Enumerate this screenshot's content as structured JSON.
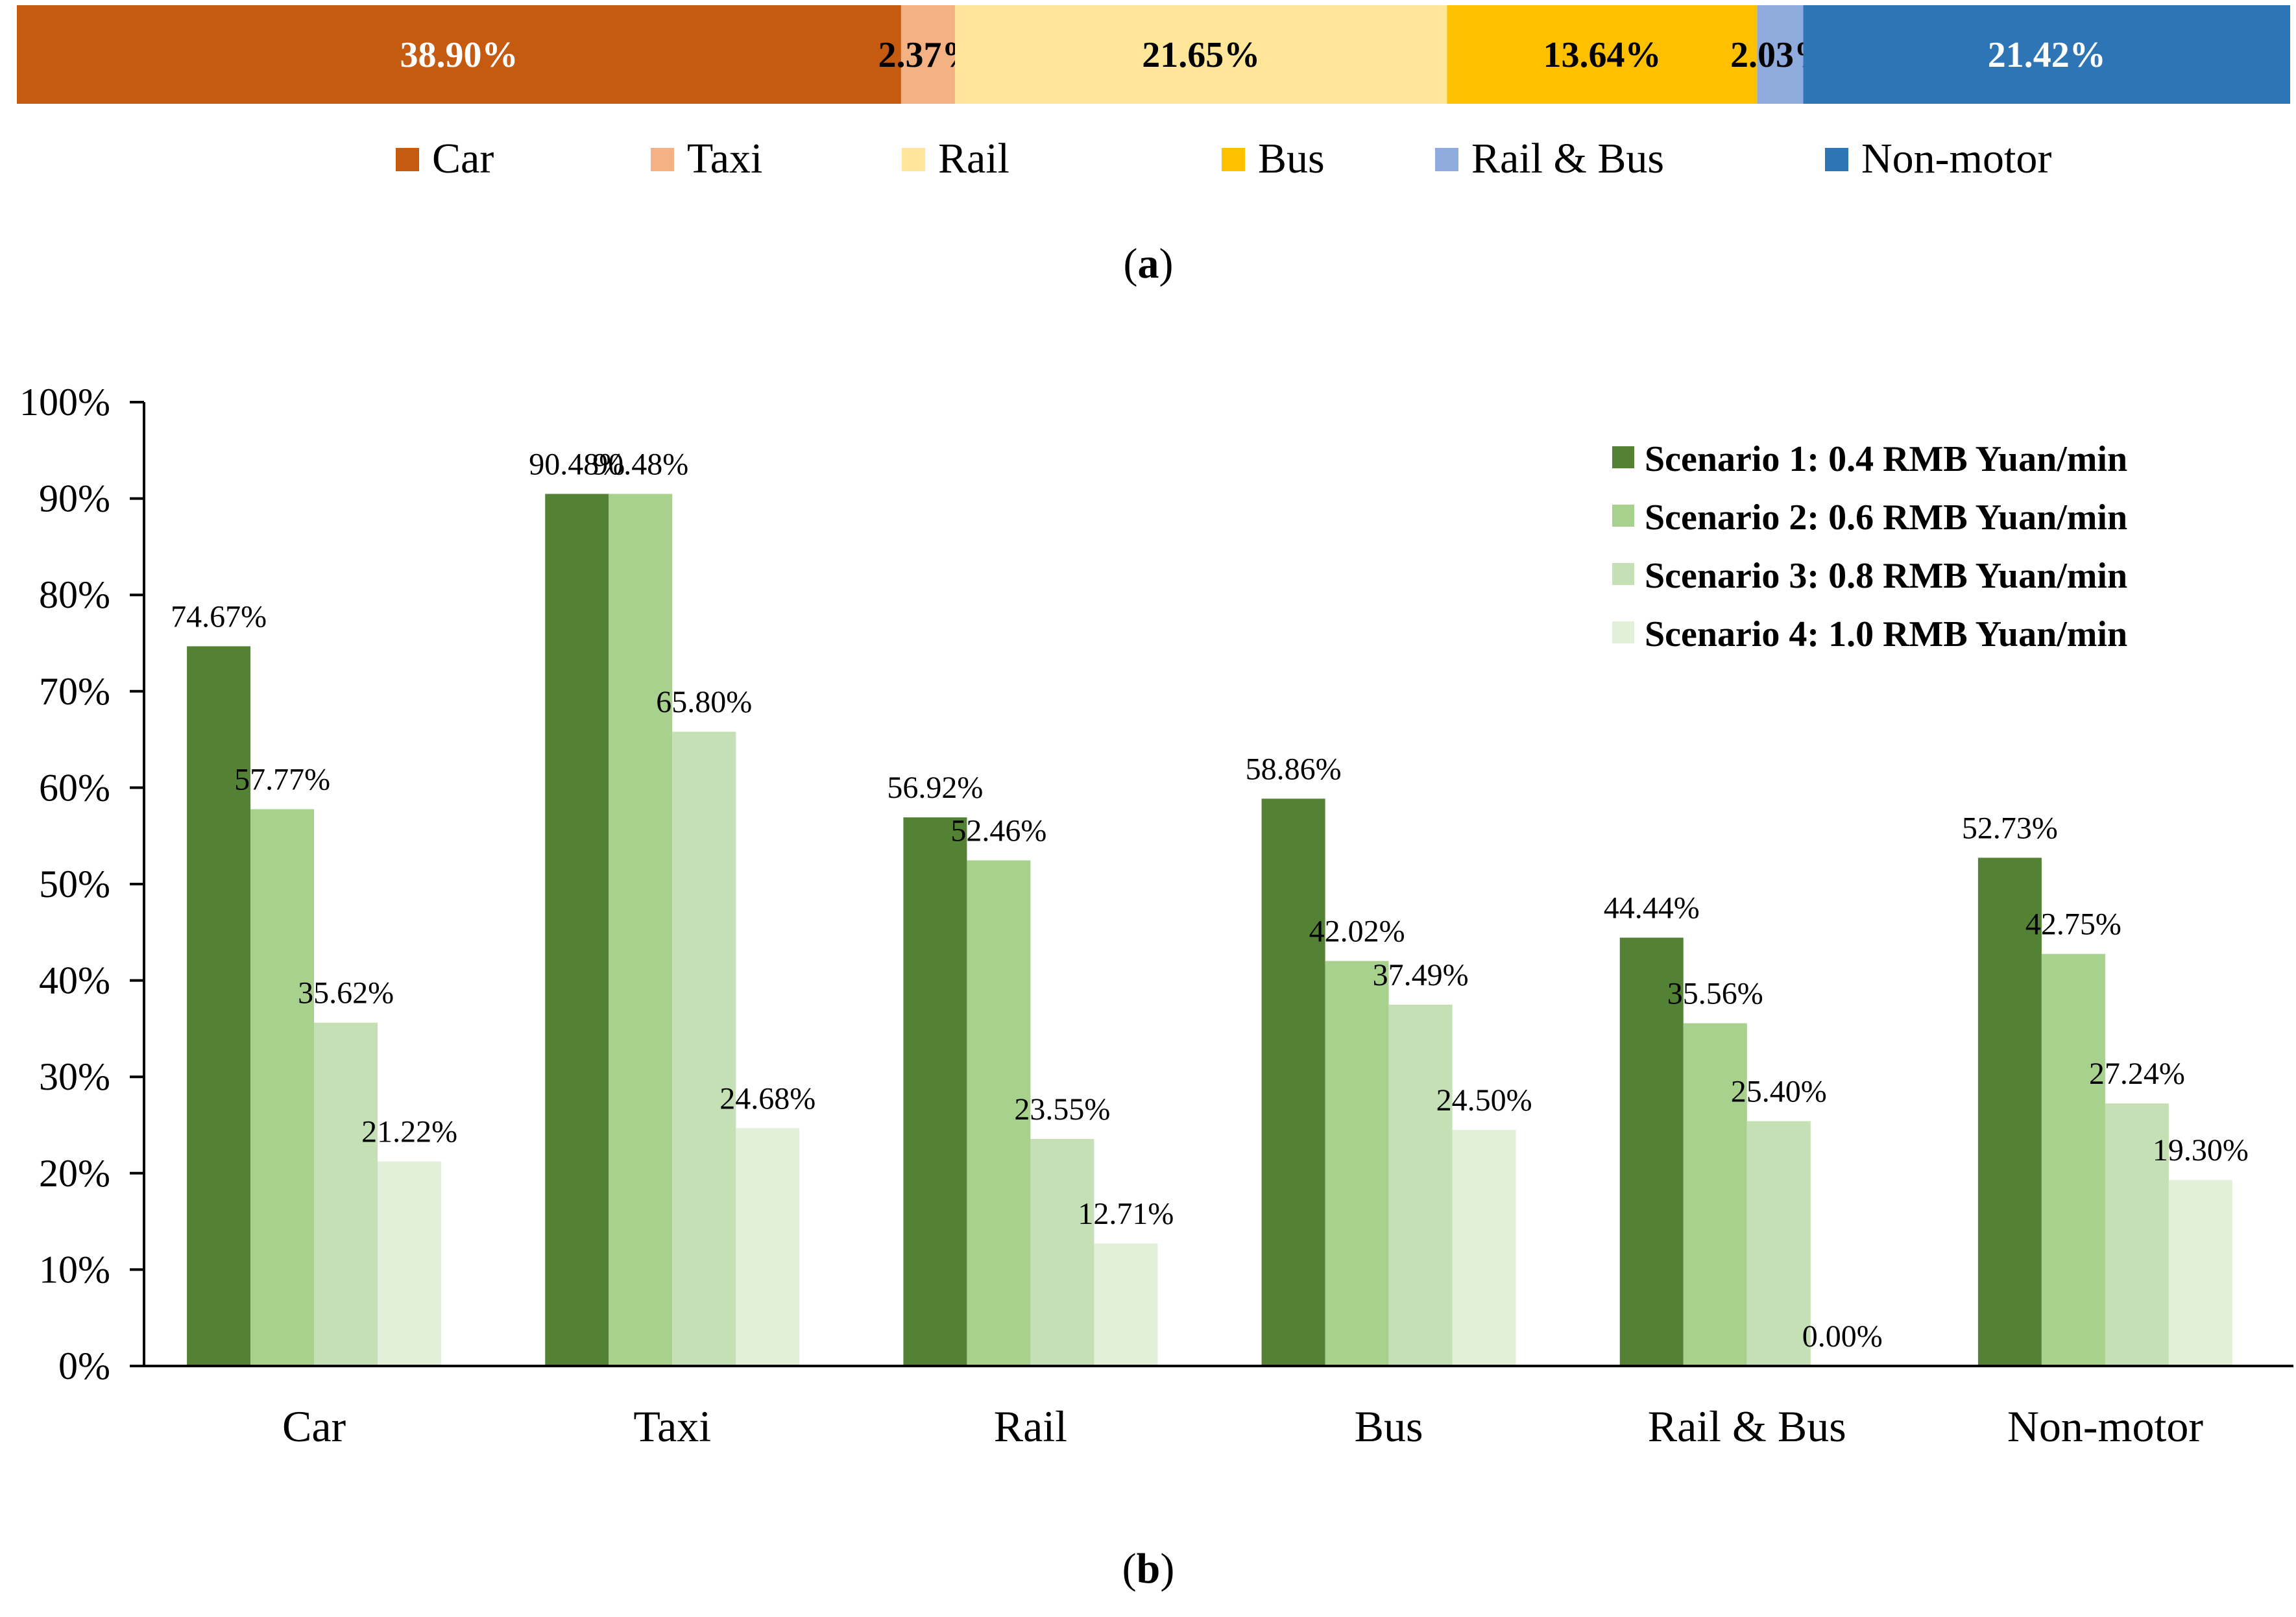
{
  "panel_labels": {
    "a": "(a)",
    "b": "(b)",
    "a_letter": "a",
    "b_letter": "b"
  },
  "chart_data": [
    {
      "id": "mode-share",
      "type": "bar",
      "orientation": "horizontal-stacked-100",
      "categories": [
        "Car",
        "Taxi",
        "Rail",
        "Bus",
        "Rail & Bus",
        "Non-motor"
      ],
      "values": [
        38.9,
        2.37,
        21.65,
        13.64,
        2.03,
        21.42
      ],
      "data_labels": [
        "38.90%",
        "2.37%",
        "21.65%",
        "13.64%",
        "2.03%",
        "21.42%"
      ],
      "colors": [
        "#C55A11",
        "#F4B183",
        "#FFE699",
        "#FFC000",
        "#8FAADC",
        "#2E75B6"
      ],
      "label_colors": [
        "#FFFFFF",
        "#000000",
        "#000000",
        "#000000",
        "#000000",
        "#FFFFFF"
      ],
      "legend": [
        "Car",
        "Taxi",
        "Rail",
        "Bus",
        "Rail & Bus",
        "Non-motor"
      ],
      "legend_position": "bottom",
      "panel": "(a)"
    },
    {
      "id": "scenario-shares",
      "type": "bar",
      "categories": [
        "Car",
        "Taxi",
        "Rail",
        "Bus",
        "Rail & Bus",
        "Non-motor"
      ],
      "series": [
        {
          "name": "Scenario 1: 0.4 RMB Yuan/min",
          "color": "#548235",
          "values": [
            74.67,
            90.48,
            56.92,
            58.86,
            44.44,
            52.73
          ],
          "labels": [
            "74.67%",
            "90.48%",
            "56.92%",
            "58.86%",
            "44.44%",
            "52.73%"
          ]
        },
        {
          "name": "Scenario 2: 0.6 RMB Yuan/min",
          "color": "#A9D18E",
          "values": [
            57.77,
            90.48,
            52.46,
            42.02,
            35.56,
            42.75
          ],
          "labels": [
            "57.77%",
            "90.48%",
            "52.46%",
            "42.02%",
            "35.56%",
            "42.75%"
          ]
        },
        {
          "name": "Scenario 3: 0.8 RMB Yuan/min",
          "color": "#C5E0B4",
          "values": [
            35.62,
            65.8,
            23.55,
            37.49,
            25.4,
            27.24
          ],
          "labels": [
            "35.62%",
            "65.80%",
            "23.55%",
            "37.49%",
            "25.40%",
            "27.24%"
          ]
        },
        {
          "name": "Scenario 4: 1.0 RMB Yuan/min",
          "color": "#E2F0D9",
          "values": [
            21.22,
            24.68,
            12.71,
            24.5,
            0.0,
            19.3
          ],
          "labels": [
            "21.22%",
            "24.68%",
            "12.71%",
            "24.50%",
            "0.00%",
            "19.30%"
          ]
        }
      ],
      "ylim": [
        0,
        100
      ],
      "yticks": [
        "0%",
        "10%",
        "20%",
        "30%",
        "40%",
        "50%",
        "60%",
        "70%",
        "80%",
        "90%",
        "100%"
      ],
      "xlabel": "",
      "ylabel": "",
      "grid": false,
      "legend_position": "top-right",
      "panel": "(b)"
    }
  ]
}
